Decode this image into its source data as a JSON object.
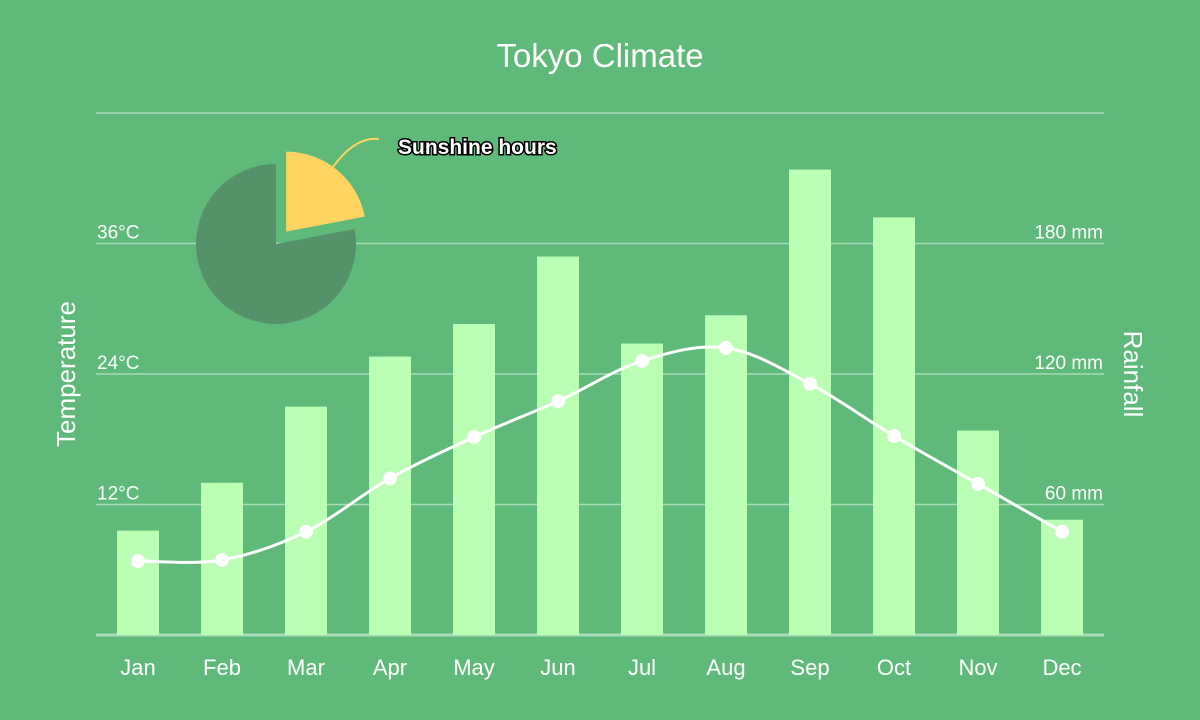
{
  "chart_data": {
    "type": "bar",
    "title": "Tokyo Climate",
    "categories": [
      "Jan",
      "Feb",
      "Mar",
      "Apr",
      "May",
      "Jun",
      "Jul",
      "Aug",
      "Sep",
      "Oct",
      "Nov",
      "Dec"
    ],
    "left_axis": {
      "label": "Temperature",
      "ticks": [
        12,
        24,
        36
      ],
      "tick_labels": [
        "12°C",
        "24°C",
        "36°C"
      ],
      "range": [
        0,
        48
      ]
    },
    "right_axis": {
      "label": "Rainfall",
      "ticks": [
        60,
        120,
        180
      ],
      "tick_labels": [
        "60 mm",
        "120 mm",
        "180 mm"
      ],
      "range": [
        0,
        240
      ]
    },
    "series": [
      {
        "name": "Rainfall",
        "type": "bar",
        "axis": "right",
        "color": "#bbffb5",
        "values": [
          48,
          70,
          105,
          128,
          143,
          174,
          134,
          147,
          214,
          192,
          94,
          53
        ]
      },
      {
        "name": "Temperature",
        "type": "line",
        "axis": "left",
        "color": "#ffffff",
        "values": [
          6.8,
          6.9,
          9.5,
          14.4,
          18.2,
          21.5,
          25.2,
          26.4,
          23.1,
          18.3,
          13.9,
          9.5
        ]
      }
    ],
    "inset_pie": {
      "label": "Sunshine hours",
      "slices": [
        {
          "name": "Sunshine hours",
          "value": 22,
          "color": "#ffd460",
          "exploded": true
        },
        {
          "name": "",
          "value": 78,
          "color": "#55926a"
        }
      ]
    },
    "grid": true,
    "background": "#5fba7a"
  }
}
